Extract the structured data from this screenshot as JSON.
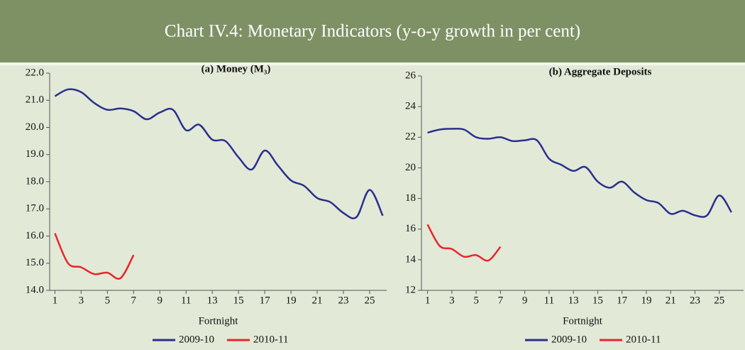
{
  "header": {
    "title": "Chart IV.4: Monetary Indicators (y-o-y growth in per cent)"
  },
  "chart_data": [
    {
      "type": "line",
      "title": "(a) Money (M₃)",
      "xlabel": "Fortnight",
      "x": [
        1,
        2,
        3,
        4,
        5,
        6,
        7,
        8,
        9,
        10,
        11,
        12,
        13,
        14,
        15,
        16,
        17,
        18,
        19,
        20,
        21,
        22,
        23,
        24,
        25,
        26
      ],
      "xlim": [
        0.6,
        26.3
      ],
      "xticks": [
        1,
        3,
        5,
        7,
        9,
        11,
        13,
        15,
        17,
        19,
        21,
        23,
        25
      ],
      "ylim": [
        14,
        22
      ],
      "yticks": [
        {
          "value": 14,
          "label": "14.0"
        },
        {
          "value": 15,
          "label": "15.0"
        },
        {
          "value": 16,
          "label": "16.0"
        },
        {
          "value": 17,
          "label": "17.0"
        },
        {
          "value": 18,
          "label": "18.0"
        },
        {
          "value": 19,
          "label": "19.0"
        },
        {
          "value": 20,
          "label": "20.0"
        },
        {
          "value": 21,
          "label": "21.0"
        },
        {
          "value": 22,
          "label": "22.0"
        }
      ],
      "series": [
        {
          "name": "2009-10",
          "color": "#2b2f8f",
          "values": [
            21.15,
            21.4,
            21.3,
            20.9,
            20.65,
            20.7,
            20.6,
            20.3,
            20.55,
            20.65,
            19.9,
            20.1,
            19.55,
            19.5,
            18.9,
            18.45,
            19.15,
            18.6,
            18.05,
            17.85,
            17.4,
            17.25,
            16.85,
            16.7,
            17.7,
            16.75
          ]
        },
        {
          "name": "2010-11",
          "color": "#e8262b",
          "values": [
            16.1,
            15.0,
            14.85,
            14.6,
            14.65,
            14.45,
            15.3,
            null,
            null,
            null,
            null,
            null,
            null,
            null,
            null,
            null,
            null,
            null,
            null,
            null,
            null,
            null,
            null,
            null,
            null,
            null
          ]
        }
      ]
    },
    {
      "type": "line",
      "title": "(b) Aggregate Deposits",
      "xlabel": "Fortnight",
      "x": [
        1,
        2,
        3,
        4,
        5,
        6,
        7,
        8,
        9,
        10,
        11,
        12,
        13,
        14,
        15,
        16,
        17,
        18,
        19,
        20,
        21,
        22,
        23,
        24,
        25,
        26
      ],
      "xlim": [
        0.5,
        27
      ],
      "xticks": [
        1,
        3,
        5,
        7,
        9,
        11,
        13,
        15,
        17,
        19,
        21,
        23,
        25
      ],
      "ylim": [
        12,
        26
      ],
      "yticks": [
        12,
        14,
        16,
        18,
        20,
        22,
        24,
        26
      ],
      "series": [
        {
          "name": "2009-10",
          "color": "#2b2f8f",
          "values": [
            22.3,
            22.5,
            22.55,
            22.5,
            22.0,
            21.9,
            22.0,
            21.75,
            21.8,
            21.8,
            20.6,
            20.2,
            19.8,
            20.05,
            19.1,
            18.7,
            19.1,
            18.4,
            17.9,
            17.7,
            17.0,
            17.2,
            16.9,
            16.9,
            18.2,
            17.1
          ]
        },
        {
          "name": "2010-11",
          "color": "#e8262b",
          "values": [
            16.3,
            14.9,
            14.7,
            14.2,
            14.3,
            13.95,
            14.85,
            null,
            null,
            null,
            null,
            null,
            null,
            null,
            null,
            null,
            null,
            null,
            null,
            null,
            null,
            null,
            null,
            null,
            null,
            null
          ]
        }
      ]
    }
  ]
}
